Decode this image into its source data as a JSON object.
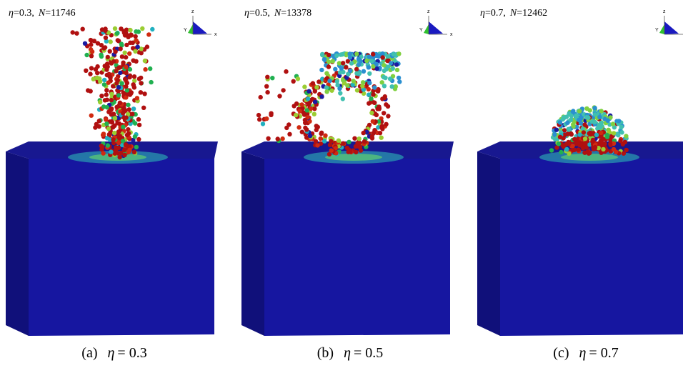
{
  "panels": [
    {
      "annotation": {
        "eta_symbol": "η",
        "eta_value": "=0.3,",
        "n_symbol": "N",
        "n_value": "=11746"
      },
      "axes": {
        "z": "z",
        "y": "Y",
        "x": "x"
      },
      "caption": {
        "label": "(a)",
        "eta_symbol": "η",
        "eta_value": "= 0.3"
      }
    },
    {
      "annotation": {
        "eta_symbol": "η",
        "eta_value": "=0.5,",
        "n_symbol": "N",
        "n_value": "=13378"
      },
      "axes": {
        "z": "z",
        "y": "Y",
        "x": "x"
      },
      "caption": {
        "label": "(b)",
        "eta_symbol": "η",
        "eta_value": "= 0.5"
      }
    },
    {
      "annotation": {
        "eta_symbol": "η",
        "eta_value": "=0.7,",
        "n_symbol": "N",
        "n_value": "=12462"
      },
      "axes": {
        "z": "z",
        "y": "Y"
      },
      "caption": {
        "label": "(c)",
        "eta_symbol": "η",
        "eta_value": "= 0.7"
      }
    }
  ]
}
